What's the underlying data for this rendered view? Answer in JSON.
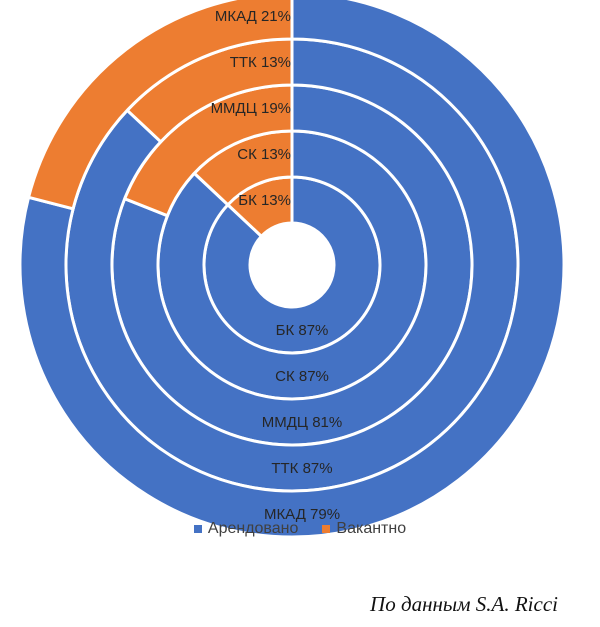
{
  "chart_data": {
    "type": "pie",
    "subtype": "nested-donut",
    "series": [
      {
        "name": "Арендовано",
        "color": "#4472C4"
      },
      {
        "name": "Вакантно",
        "color": "#ED7D31"
      }
    ],
    "rings": [
      {
        "name": "БК",
        "values": [
          87,
          13
        ],
        "labels": [
          "БК 87%",
          "БК 13%"
        ]
      },
      {
        "name": "СК",
        "values": [
          87,
          13
        ],
        "labels": [
          "СК 87%",
          "СК 13%"
        ]
      },
      {
        "name": "ММДЦ",
        "values": [
          81,
          19
        ],
        "labels": [
          "ММДЦ 81%",
          "ММДЦ 19%"
        ]
      },
      {
        "name": "ТТК",
        "values": [
          87,
          13
        ],
        "labels": [
          "ТТК 87%",
          "ТТК 13%"
        ]
      },
      {
        "name": "МКАД",
        "values": [
          79,
          21
        ],
        "labels": [
          "МКАД 79%",
          "МКАД 21%"
        ]
      }
    ],
    "legend_position": "bottom"
  },
  "source_note": "По данным S.A. Ricci"
}
